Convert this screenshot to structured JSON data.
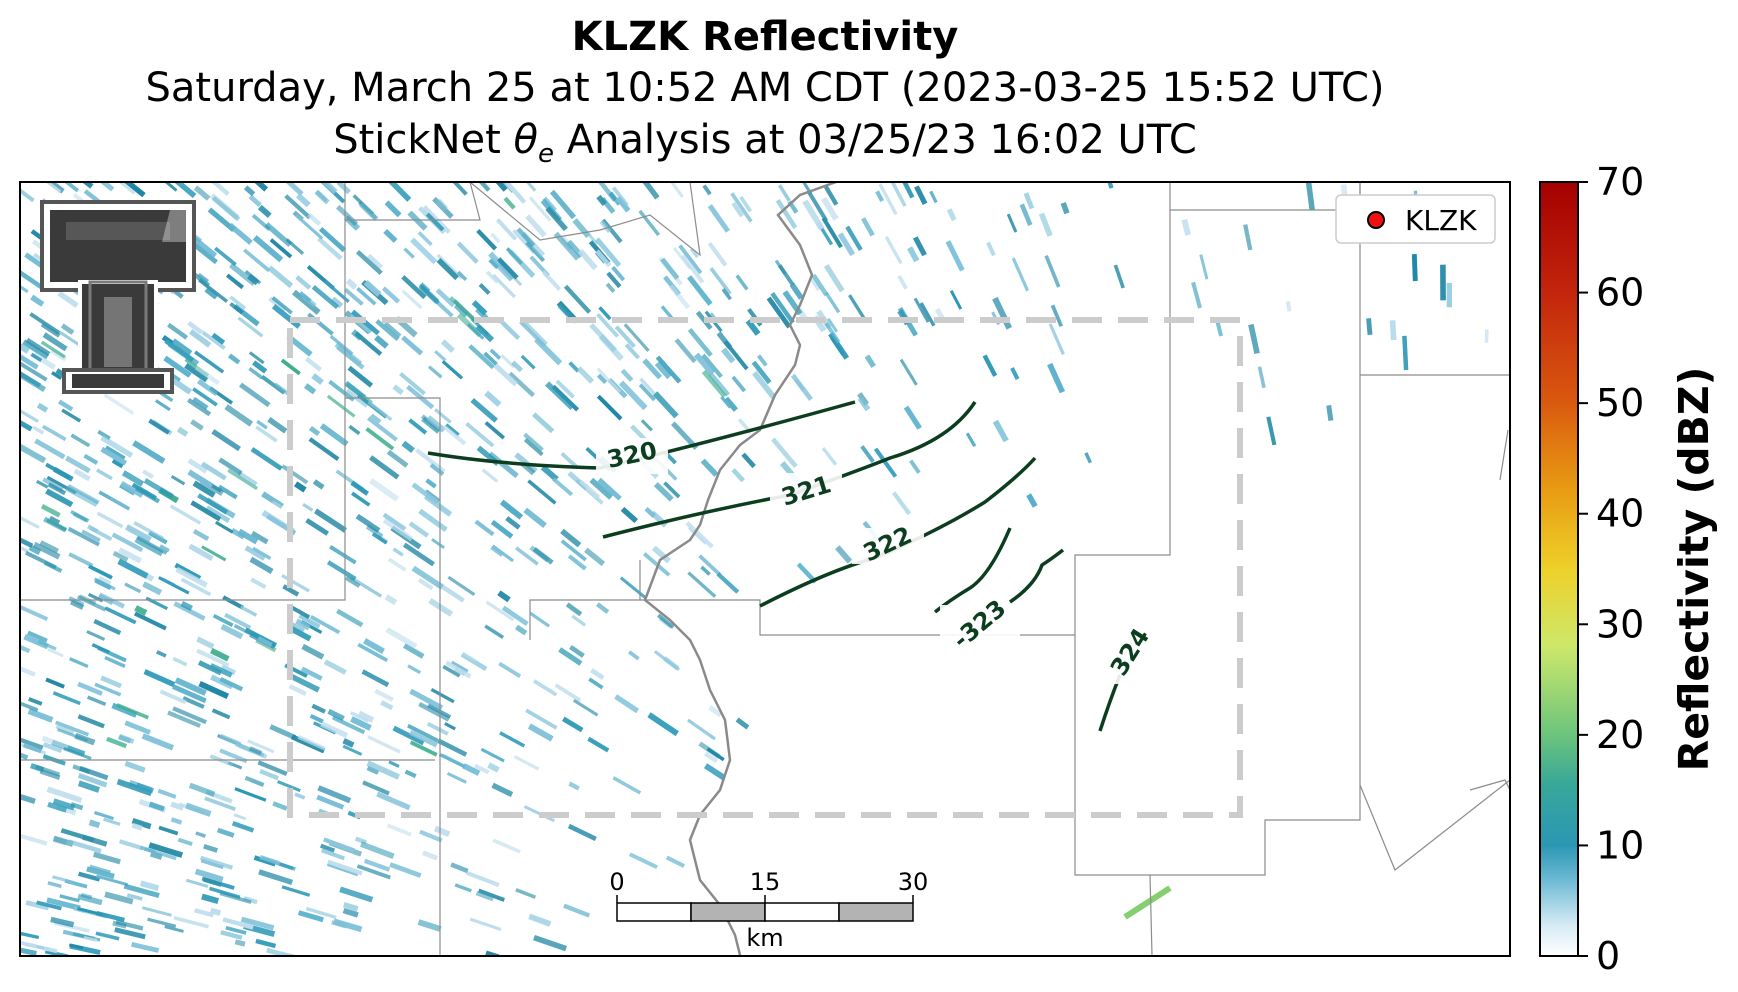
{
  "title": {
    "line1": "KLZK Reflectivity",
    "line2": "Saturday, March 25 at 10:52 AM CDT (2023-03-25 15:52 UTC)",
    "line3_pre": "StickNet ",
    "line3_symbol": "θ",
    "line3_sub": "e",
    "line3_post": " Analysis at 03/25/23 16:02 UTC"
  },
  "legend": {
    "label": "KLZK",
    "marker_color": "#ee1111"
  },
  "colorbar": {
    "label": "Reflectivity (dBZ)",
    "ticks": [
      "0",
      "10",
      "20",
      "30",
      "40",
      "50",
      "60",
      "70"
    ],
    "range": [
      0,
      70
    ],
    "colors": [
      "#ffffff",
      "#bcdcec",
      "#2b9bb5",
      "#2fa59f",
      "#6cc47c",
      "#d4ee6a",
      "#e7c51b",
      "#ea7d12",
      "#c7300d",
      "#a50000"
    ]
  },
  "contours": {
    "color": "#0b3d1e",
    "labels": [
      "320",
      "321",
      "322",
      "-323",
      "324"
    ]
  },
  "scale_bar": {
    "ticks": [
      "0",
      "15",
      "30"
    ],
    "unit": "km"
  },
  "analysis_box": {
    "style": "dashed",
    "color": "#cccccc"
  },
  "logo": {
    "name": "texas-tech-double-t-logo"
  }
}
